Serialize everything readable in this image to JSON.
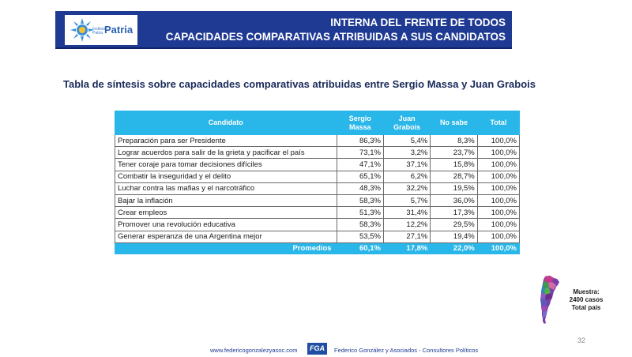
{
  "header": {
    "logo_small": "Instituto Patria",
    "logo_text": "Patria",
    "title_line1": "INTERNA DEL FRENTE DE TODOS",
    "title_line2": "CAPACIDADES COMPARATIVAS ATRIBUIDAS A SUS CANDIDATOS"
  },
  "subtitle": "Tabla de síntesis sobre capacidades comparativas  atribuidas entre Sergio Massa y Juan Grabois",
  "table": {
    "headers": {
      "candidato": "Candidato",
      "massa": "Sergio Massa",
      "grabois": "Juan Grabois",
      "nosabe": "No sabe",
      "total": "Total"
    },
    "rows": [
      {
        "label": "Preparación para ser Presidente",
        "massa": "86,3%",
        "grabois": "5,4%",
        "nosabe": "8,3%",
        "total": "100,0%"
      },
      {
        "label": "Lograr acuerdos para salir de la grieta y pacificar el país",
        "massa": "73,1%",
        "grabois": "3,2%",
        "nosabe": "23,7%",
        "total": "100,0%"
      },
      {
        "label": "Tener coraje para tomar decisiones difíciles",
        "massa": "47,1%",
        "grabois": "37,1%",
        "nosabe": "15,8%",
        "total": "100,0%"
      },
      {
        "label": "Combatir la inseguridad y el delito",
        "massa": "65,1%",
        "grabois": "6,2%",
        "nosabe": "28,7%",
        "total": "100,0%"
      },
      {
        "label": "Luchar contra las mafias y el narcotráfico",
        "massa": "48,3%",
        "grabois": "32,2%",
        "nosabe": "19,5%",
        "total": "100,0%"
      },
      {
        "label": "Bajar la inflación",
        "massa": "58,3%",
        "grabois": "5,7%",
        "nosabe": "36,0%",
        "total": "100,0%"
      },
      {
        "label": "Crear empleos",
        "massa": "51,3%",
        "grabois": "31,4%",
        "nosabe": "17,3%",
        "total": "100,0%"
      },
      {
        "label": "Promover una revolución educativa",
        "massa": "58,3%",
        "grabois": "12,2%",
        "nosabe": "29,5%",
        "total": "100,0%"
      },
      {
        "label": "Generar esperanza de una Argentina mejor",
        "massa": "53,5%",
        "grabois": "27,1%",
        "nosabe": "19,4%",
        "total": "100,0%"
      }
    ],
    "average": {
      "label": "Promedios",
      "massa": "60,1%",
      "grabois": "17,8%",
      "nosabe": "22,0%",
      "total": "100,0%"
    }
  },
  "sample": {
    "line1": "Muestra:",
    "line2": "2400 casos",
    "line3": "Total país"
  },
  "page_number": "32",
  "footer": {
    "url": "www.federicogonzalezyasoc.com",
    "logo": "FGA",
    "firm": "Federico González y Asociados - Consultores Políticos"
  },
  "colors": {
    "banner": "#1f3a93",
    "table_header": "#29b6e8"
  }
}
